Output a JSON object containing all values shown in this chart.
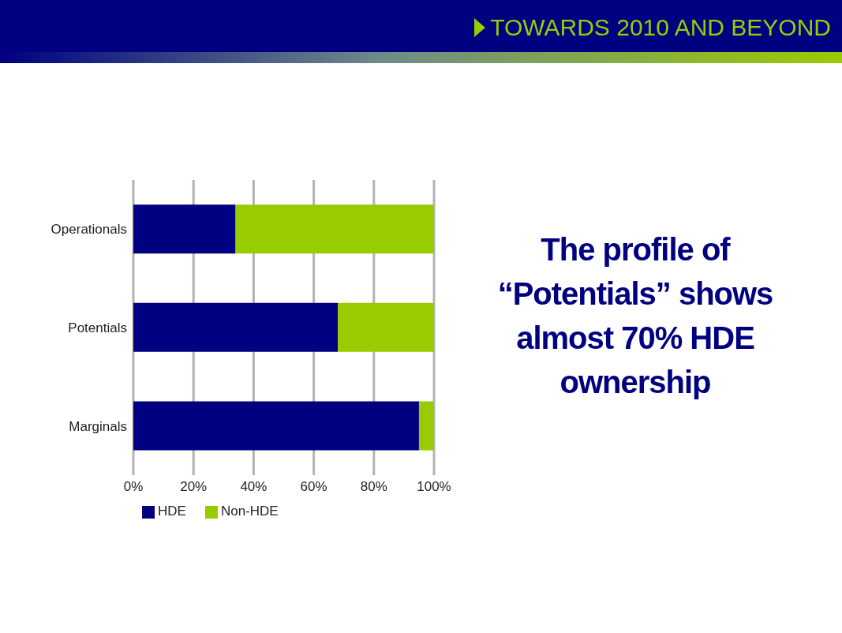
{
  "chart_data": {
    "type": "bar",
    "title": "TOWARDS 2010 AND BEYOND",
    "annotations": [
      "The profile of “Potentials” shows almost 70% HDE ownership"
    ],
    "categories": [
      "Operationals",
      "Potentials",
      "Marginals"
    ],
    "series": [
      {
        "name": "HDE",
        "color": "#000080",
        "values": [
          34,
          68,
          95
        ]
      },
      {
        "name": "Non-HDE",
        "color": "#99cc00",
        "values": [
          66,
          32,
          5
        ]
      }
    ],
    "stacked": true,
    "orientation": "horizontal",
    "xlim": [
      0,
      100
    ],
    "xticks": [
      {
        "value": 0,
        "label": "0%"
      },
      {
        "value": 20,
        "label": "20%"
      },
      {
        "value": 40,
        "label": "40%"
      },
      {
        "value": 60,
        "label": "60%"
      },
      {
        "value": 80,
        "label": "80%"
      },
      {
        "value": 100,
        "label": "100%"
      }
    ],
    "grid": "x",
    "legend": "bottom left"
  }
}
